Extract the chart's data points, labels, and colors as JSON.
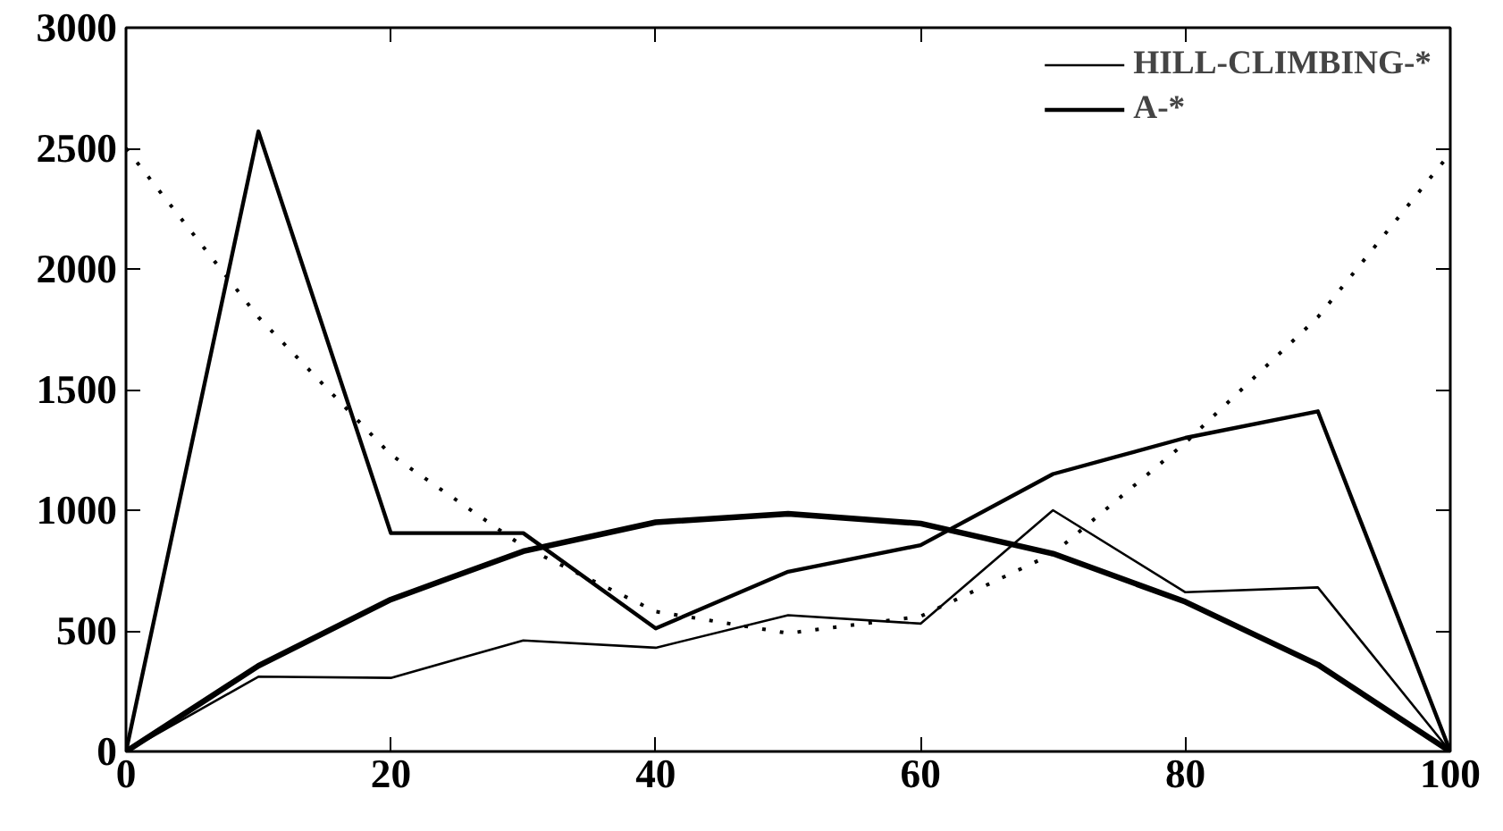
{
  "chart_data": {
    "type": "line",
    "x": [
      0,
      10,
      20,
      30,
      40,
      50,
      60,
      70,
      80,
      90,
      100
    ],
    "series": [
      {
        "name": "HILL-CLIMBING-*",
        "color": "#000000",
        "values": [
          0,
          310,
          305,
          460,
          430,
          565,
          530,
          1000,
          660,
          680,
          0
        ]
      },
      {
        "name": "A-*",
        "color": "#000000",
        "values": [
          0,
          2570,
          905,
          905,
          510,
          745,
          855,
          1150,
          1300,
          1410,
          0
        ]
      },
      {
        "color": "#000000",
        "values": [
          0,
          355,
          630,
          830,
          950,
          985,
          945,
          820,
          620,
          360,
          0
        ]
      },
      {
        "color": "#000000",
        "line_style": "dotted",
        "values": [
          2500,
          1800,
          1230,
          850,
          580,
          490,
          560,
          820,
          1280,
          1800,
          2480
        ]
      }
    ],
    "xlim": [
      0,
      100
    ],
    "ylim": [
      0,
      3000
    ],
    "xticks": [
      0,
      20,
      40,
      60,
      80,
      100
    ],
    "yticks": [
      0,
      500,
      1000,
      1500,
      2000,
      2500,
      3000
    ],
    "grid": false,
    "legend": "top right",
    "line_style": "solid",
    "marker": "none"
  }
}
